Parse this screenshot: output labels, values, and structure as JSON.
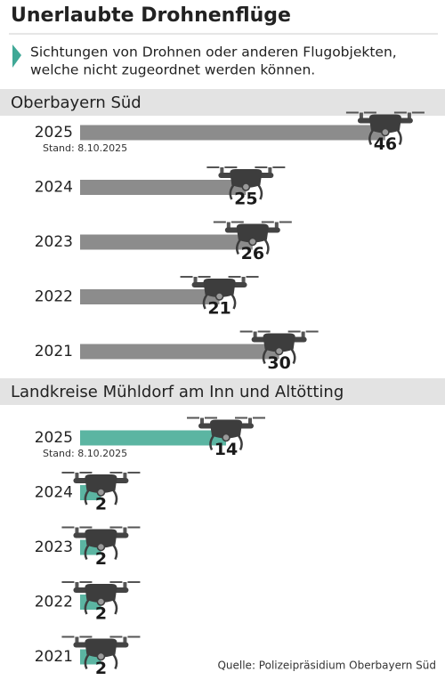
{
  "title": "Unerlaubte Drohnenflüge",
  "subtitle": [
    "Sichtungen von Drohnen oder anderen Flugobjekten,",
    "welche nicht zugeordnet werden können."
  ],
  "source": "Quelle: Polizeipräsidium Oberbayern Süd",
  "chart_data": [
    {
      "type": "bar",
      "orientation": "horizontal",
      "title": "Oberbayern Süd",
      "categories": [
        "2025",
        "2024",
        "2023",
        "2022",
        "2021"
      ],
      "values": [
        46,
        25,
        26,
        21,
        30
      ],
      "color": "#8c8c8c",
      "xlim": [
        0,
        55
      ],
      "annotation": "Stand: 8.10.2025"
    },
    {
      "type": "bar",
      "orientation": "horizontal",
      "title": "Landkreise Mühldorf am Inn und Altötting",
      "categories": [
        "2025",
        "2024",
        "2023",
        "2022",
        "2021"
      ],
      "values": [
        14,
        2,
        2,
        2,
        2
      ],
      "color": "#5bb5a2",
      "xlim": [
        0,
        35
      ],
      "annotation": "Stand: 8.10.2025"
    }
  ]
}
